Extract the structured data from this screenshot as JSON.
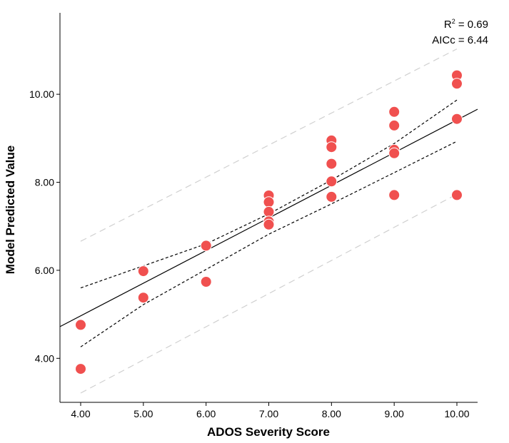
{
  "chart_data": {
    "type": "scatter",
    "title": "",
    "xlabel": "ADOS Severity Score",
    "ylabel": "Model Predicted Value",
    "xlim": [
      3.67,
      10.33
    ],
    "ylim": [
      3.0,
      11.85
    ],
    "x_ticks": [
      4,
      5,
      6,
      7,
      8,
      9,
      10
    ],
    "x_tick_labels": [
      "4.00",
      "5.00",
      "6.00",
      "7.00",
      "8.00",
      "9.00",
      "10.00"
    ],
    "y_ticks": [
      4,
      6,
      8,
      10
    ],
    "y_tick_labels": [
      "4.00",
      "6.00",
      "8.00",
      "10.00"
    ],
    "stats": {
      "r2_label": "R",
      "r2_sup": "2",
      "r2_value": " = 0.69",
      "aicc": "AICc = 6.44"
    },
    "colors": {
      "point": "#f0504f",
      "point_stroke": "#ffffff",
      "fit": "#000000",
      "ci": "#000000",
      "pi": "#d0d0d0"
    },
    "points": [
      {
        "x": 4,
        "y": 4.76
      },
      {
        "x": 4,
        "y": 3.76
      },
      {
        "x": 5,
        "y": 5.98
      },
      {
        "x": 5,
        "y": 5.38
      },
      {
        "x": 6,
        "y": 6.56
      },
      {
        "x": 6,
        "y": 5.74
      },
      {
        "x": 7,
        "y": 7.7
      },
      {
        "x": 7,
        "y": 7.55
      },
      {
        "x": 7,
        "y": 7.33
      },
      {
        "x": 7,
        "y": 7.11
      },
      {
        "x": 7,
        "y": 7.04
      },
      {
        "x": 8,
        "y": 8.95
      },
      {
        "x": 8,
        "y": 8.8
      },
      {
        "x": 8,
        "y": 8.42
      },
      {
        "x": 8,
        "y": 8.02
      },
      {
        "x": 8,
        "y": 7.67
      },
      {
        "x": 9,
        "y": 9.6
      },
      {
        "x": 9,
        "y": 9.29
      },
      {
        "x": 9,
        "y": 8.74
      },
      {
        "x": 9,
        "y": 8.66
      },
      {
        "x": 9,
        "y": 7.71
      },
      {
        "x": 10,
        "y": 10.43
      },
      {
        "x": 10,
        "y": 10.24
      },
      {
        "x": 10,
        "y": 9.44
      },
      {
        "x": 10,
        "y": 7.71
      }
    ],
    "fit_line": {
      "x": [
        3.67,
        10.33
      ],
      "y": [
        4.72,
        9.66
      ]
    },
    "confidence_band": {
      "x": [
        4,
        5,
        6,
        7,
        8,
        9,
        10
      ],
      "upper": [
        5.6,
        6.1,
        6.6,
        7.28,
        8.05,
        8.88,
        9.87
      ],
      "lower": [
        4.26,
        5.22,
        6.02,
        6.82,
        7.51,
        8.22,
        8.93
      ]
    },
    "prediction_band": {
      "x": [
        4,
        10
      ],
      "upper": [
        6.66,
        11.03
      ],
      "lower": [
        3.21,
        7.73
      ]
    }
  }
}
